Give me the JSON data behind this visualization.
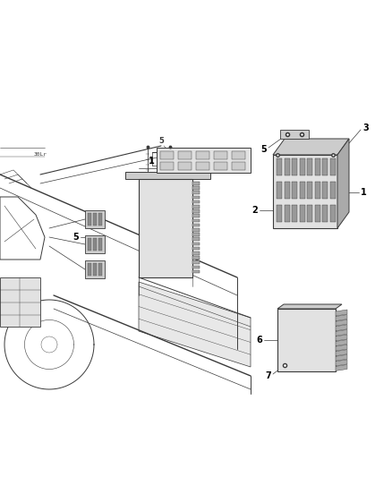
{
  "bg_color": "#ffffff",
  "fig_width": 4.38,
  "fig_height": 5.33,
  "dpi": 100,
  "lc": "#3a3a3a",
  "lc_thin": "#555555",
  "lc_med": "#444444",
  "gray_fill": "#cccccc",
  "gray_dark": "#aaaaaa",
  "gray_light": "#e2e2e2",
  "label_fs": 7,
  "callout_lw": 0.5,
  "main_lw": 0.6,
  "thin_lw": 0.4
}
